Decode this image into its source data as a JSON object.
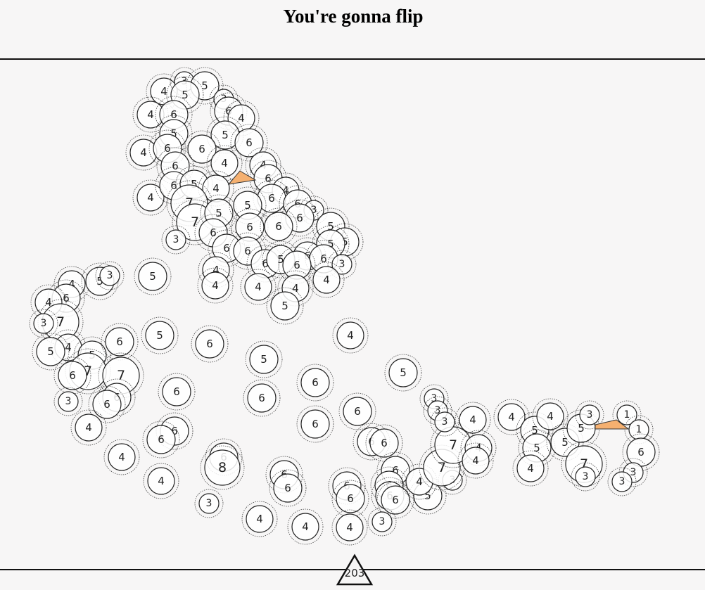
{
  "header": {
    "title": "You're gonna flip"
  },
  "circles": [
    4,
    3,
    5,
    5,
    3,
    6,
    4,
    4,
    6,
    5,
    5,
    6,
    4,
    6,
    6,
    6,
    4,
    4,
    6,
    4,
    6,
    5,
    4,
    4,
    6,
    7,
    7,
    5,
    5,
    6,
    3,
    6,
    3,
    6,
    6,
    6,
    5,
    5,
    5,
    6,
    6,
    6,
    6,
    6,
    5,
    6,
    3,
    4,
    4,
    5,
    4,
    4,
    4,
    5,
    4,
    5,
    3,
    6,
    4,
    7,
    3,
    4,
    5,
    5,
    6,
    5,
    6,
    7,
    7,
    6,
    6,
    6,
    3,
    4,
    6,
    6,
    6,
    4,
    4,
    6,
    8,
    3,
    4,
    4,
    6,
    6,
    5,
    4,
    6,
    6,
    6,
    6,
    5,
    6,
    6,
    6,
    6,
    6,
    6,
    6,
    6,
    4,
    3,
    5,
    4,
    3,
    7,
    7,
    3,
    3,
    3,
    4,
    4,
    4,
    4,
    5,
    4,
    5,
    4,
    5,
    5,
    3,
    7,
    3,
    1,
    1,
    6,
    3,
    3
  ],
  "footer": {
    "counter": "203"
  }
}
